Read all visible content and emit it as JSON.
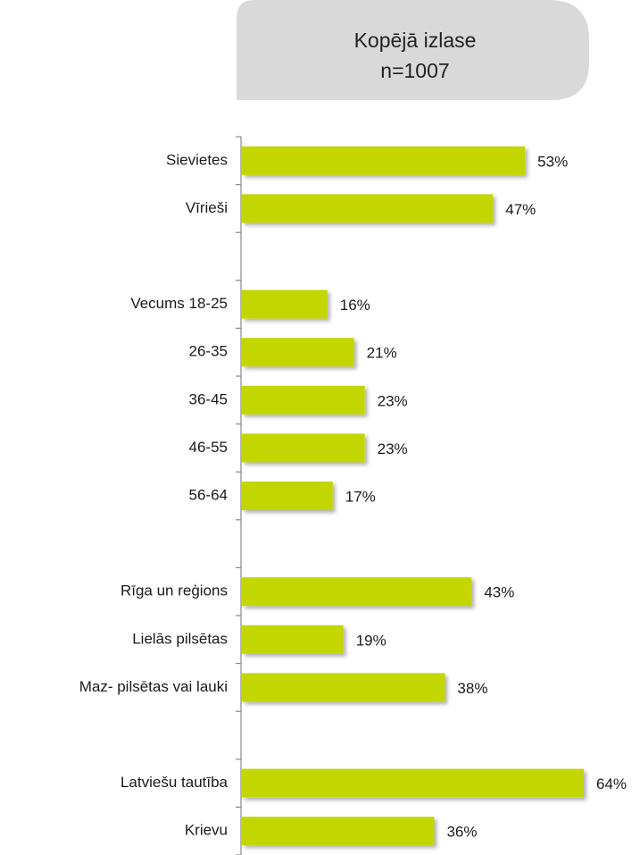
{
  "chart_data": {
    "type": "bar",
    "orientation": "horizontal",
    "title": "Kopējā izlase",
    "subtitle": "n=1007",
    "categories": [
      "Sievietes",
      "Vīrieši",
      null,
      "Vecums 18-25",
      "26-35",
      "36-45",
      "46-55",
      "56-64",
      null,
      "Rīga un reģions",
      "Lielās pilsētas",
      "Maz- pilsētas vai lauki",
      null,
      "Latviešu tautība",
      "Krievu"
    ],
    "values": [
      53,
      47,
      null,
      16,
      21,
      23,
      23,
      17,
      null,
      43,
      19,
      38,
      null,
      64,
      36
    ],
    "value_labels": [
      "53%",
      "47%",
      null,
      "16%",
      "21%",
      "23%",
      "23%",
      "17%",
      null,
      "43%",
      "19%",
      "38%",
      null,
      "64%",
      "36%"
    ],
    "color": "#c4d600"
  }
}
